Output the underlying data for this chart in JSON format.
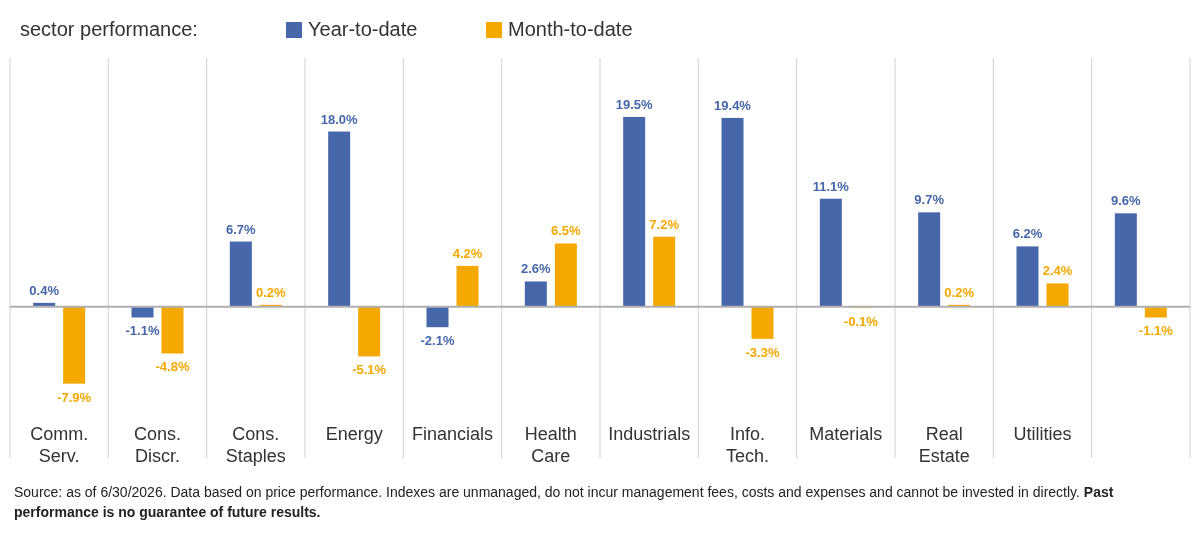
{
  "chart_data": {
    "type": "bar",
    "title": "sector performance:",
    "categories": [
      "Comm. Serv.",
      "Cons. Discr.",
      "Cons. Staples",
      "Energy",
      "Financials",
      "Health Care",
      "Industrials",
      "Info. Tech.",
      "Materials",
      "Real Estate",
      "Utilities",
      null
    ],
    "series": [
      {
        "name": "Year-to-date",
        "color": "#4767ab",
        "values": [
          0.4,
          -1.1,
          6.7,
          18.0,
          -2.1,
          2.6,
          19.5,
          19.4,
          11.1,
          9.7,
          6.2,
          9.6
        ],
        "value_labels": [
          "0.4%",
          "-1.1%",
          "6.7%",
          "18.0%",
          "-2.1%",
          "2.6%",
          "19.5%",
          "19.4%",
          "11.1%",
          "9.7%",
          "6.2%",
          "9.6%"
        ]
      },
      {
        "name": "Month-to-date",
        "color": "#f5a800",
        "values": [
          -7.9,
          -4.8,
          0.2,
          -5.1,
          4.2,
          6.5,
          7.2,
          -3.3,
          -0.1,
          0.2,
          2.4,
          -1.1
        ],
        "value_labels": [
          "-7.9%",
          "-4.8%",
          "0.2%",
          "-5.1%",
          "4.2%",
          "6.5%",
          "7.2%",
          "-3.3%",
          "-0.1%",
          "0.2%",
          "2.4%",
          "-1.1%"
        ]
      }
    ],
    "grid": "x",
    "legend": "top",
    "annotations": [
      "Source: as of 6/30/2026. Data based on price performance. Indexes are unmanaged, do not incur management fees, costs and expenses and cannot be invested in directly.",
      "Past performance is no guarantee of future results."
    ]
  }
}
